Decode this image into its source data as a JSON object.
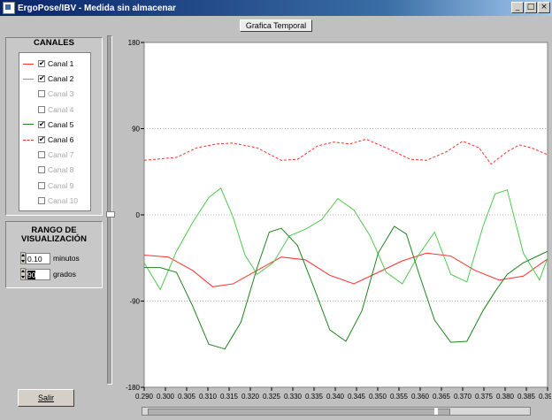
{
  "window": {
    "title": "ErgoPose/IBV - Medida sin almacenar",
    "buttons": {
      "minimize": "_",
      "maximize": "□",
      "close": "×"
    }
  },
  "chart_tab": "Grafica Temporal",
  "channels_group": {
    "title": "CANALES",
    "items": [
      {
        "label": "Canal 1",
        "checked": true,
        "color": "#ff3030",
        "style": "solid",
        "check": "✔"
      },
      {
        "label": "Canal 2",
        "checked": true,
        "color": "#50c850",
        "style": "solid",
        "check": "✔"
      },
      {
        "label": "Canal 3",
        "checked": false,
        "color": "",
        "style": "none",
        "check": ""
      },
      {
        "label": "Canal 4",
        "checked": false,
        "color": "",
        "style": "none",
        "check": ""
      },
      {
        "label": "Canal 5",
        "checked": true,
        "color": "#208020",
        "style": "solid",
        "check": "✔"
      },
      {
        "label": "Canal 6",
        "checked": true,
        "color": "#ff3030",
        "style": "dashed",
        "check": "✔"
      },
      {
        "label": "Canal 7",
        "checked": false,
        "color": "",
        "style": "none",
        "check": ""
      },
      {
        "label": "Canal 8",
        "checked": false,
        "color": "",
        "style": "none",
        "check": ""
      },
      {
        "label": "Canal 9",
        "checked": false,
        "color": "",
        "style": "none",
        "check": ""
      },
      {
        "label": "Canal 10",
        "checked": false,
        "color": "",
        "style": "none",
        "check": ""
      }
    ]
  },
  "range_group": {
    "title_line1": "RANGO DE",
    "title_line2": "VISUALIZACIÓN",
    "minutes_value": "0.10",
    "minutes_unit": "minutos",
    "degrees_value": "90",
    "degrees_unit": "grados"
  },
  "exit_button": "Salir",
  "chart_data": {
    "type": "line",
    "title": "",
    "xlabel": "",
    "ylabel": "",
    "ylim": [
      -180,
      180
    ],
    "yticks": [
      "180",
      "90",
      "0",
      "-90",
      "-180"
    ],
    "xticks": [
      "0.290",
      "0.300",
      "0.305",
      "0.310",
      "0.315",
      "0.320",
      "0.325",
      "0.330",
      "0.335",
      "0.340",
      "0.345",
      "0.350",
      "0.355",
      "0.360",
      "0.365",
      "0.370",
      "0.375",
      "0.380",
      "0.385",
      "0.390"
    ],
    "xlim": [
      0.29,
      0.39
    ],
    "grid": "horizontal-dotted",
    "series": [
      {
        "channel": "Canal 6",
        "color": "#ff3030",
        "dash": true,
        "x": [
          0.29,
          0.298,
          0.303,
          0.308,
          0.312,
          0.318,
          0.324,
          0.328,
          0.333,
          0.337,
          0.341,
          0.345,
          0.35,
          0.356,
          0.36,
          0.365,
          0.369,
          0.373,
          0.376,
          0.38,
          0.383,
          0.386,
          0.39
        ],
        "y": [
          57,
          60,
          70,
          74,
          75,
          70,
          57,
          58,
          72,
          76,
          74,
          79,
          70,
          58,
          57,
          66,
          77,
          70,
          53,
          66,
          73,
          70,
          63
        ]
      },
      {
        "channel": "Canal 1",
        "color": "#ff3030",
        "dash": false,
        "x": [
          0.29,
          0.296,
          0.302,
          0.307,
          0.312,
          0.318,
          0.324,
          0.33,
          0.336,
          0.342,
          0.348,
          0.354,
          0.36,
          0.366,
          0.372,
          0.378,
          0.384,
          0.39
        ],
        "y": [
          -42,
          -44,
          -58,
          -75,
          -72,
          -58,
          -44,
          -47,
          -63,
          -72,
          -60,
          -48,
          -40,
          -43,
          -58,
          -68,
          -64,
          -46
        ]
      },
      {
        "channel": "Canal 2",
        "color": "#50c850",
        "dash": false,
        "x": [
          0.29,
          0.294,
          0.298,
          0.302,
          0.306,
          0.309,
          0.312,
          0.315,
          0.318,
          0.322,
          0.326,
          0.33,
          0.334,
          0.338,
          0.342,
          0.346,
          0.35,
          0.354,
          0.358,
          0.362,
          0.366,
          0.37,
          0.374,
          0.377,
          0.38,
          0.384,
          0.388,
          0.39
        ],
        "y": [
          -50,
          -78,
          -38,
          -8,
          18,
          28,
          -2,
          -42,
          -62,
          -50,
          -22,
          -15,
          -5,
          17,
          5,
          -22,
          -60,
          -72,
          -42,
          -18,
          -62,
          -70,
          -12,
          22,
          26,
          -40,
          -68,
          -45
        ]
      },
      {
        "channel": "Canal 5",
        "color": "#208020",
        "dash": false,
        "x": [
          0.29,
          0.294,
          0.298,
          0.302,
          0.306,
          0.31,
          0.314,
          0.318,
          0.321,
          0.324,
          0.328,
          0.332,
          0.336,
          0.34,
          0.344,
          0.348,
          0.352,
          0.355,
          0.358,
          0.362,
          0.366,
          0.37,
          0.374,
          0.377,
          0.38,
          0.384,
          0.388,
          0.39
        ],
        "y": [
          -55,
          -55,
          -60,
          -95,
          -135,
          -140,
          -112,
          -55,
          -18,
          -14,
          -32,
          -75,
          -120,
          -132,
          -100,
          -40,
          -12,
          -20,
          -60,
          -110,
          -133,
          -132,
          -100,
          -80,
          -62,
          -50,
          -42,
          -38
        ]
      }
    ]
  }
}
